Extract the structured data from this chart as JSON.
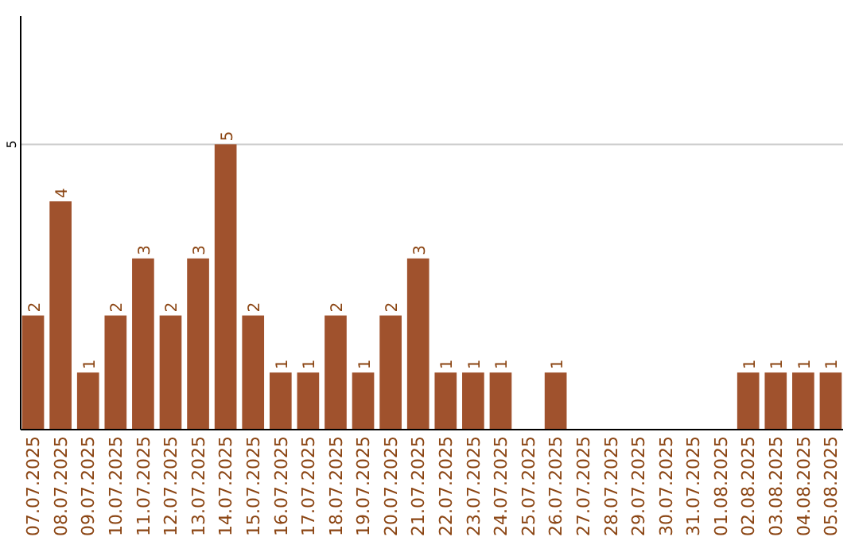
{
  "chart_data": {
    "type": "bar",
    "categories": [
      "07.07.2025",
      "08.07.2025",
      "09.07.2025",
      "10.07.2025",
      "11.07.2025",
      "12.07.2025",
      "13.07.2025",
      "14.07.2025",
      "15.07.2025",
      "16.07.2025",
      "17.07.2025",
      "18.07.2025",
      "19.07.2025",
      "20.07.2025",
      "21.07.2025",
      "22.07.2025",
      "23.07.2025",
      "24.07.2025",
      "25.07.2025",
      "26.07.2025",
      "27.07.2025",
      "28.07.2025",
      "29.07.2025",
      "30.07.2025",
      "31.07.2025",
      "01.08.2025",
      "02.08.2025",
      "03.08.2025",
      "04.08.2025",
      "05.08.2025"
    ],
    "values": [
      2,
      4,
      1,
      2,
      3,
      2,
      3,
      5,
      2,
      1,
      1,
      2,
      1,
      2,
      3,
      1,
      1,
      1,
      null,
      1,
      null,
      null,
      null,
      null,
      null,
      null,
      1,
      1,
      1,
      1
    ],
    "color": "#a0522d",
    "ylim": [
      0,
      7.25
    ],
    "yticks": [
      5
    ],
    "grid": "y",
    "data_labels": true
  }
}
